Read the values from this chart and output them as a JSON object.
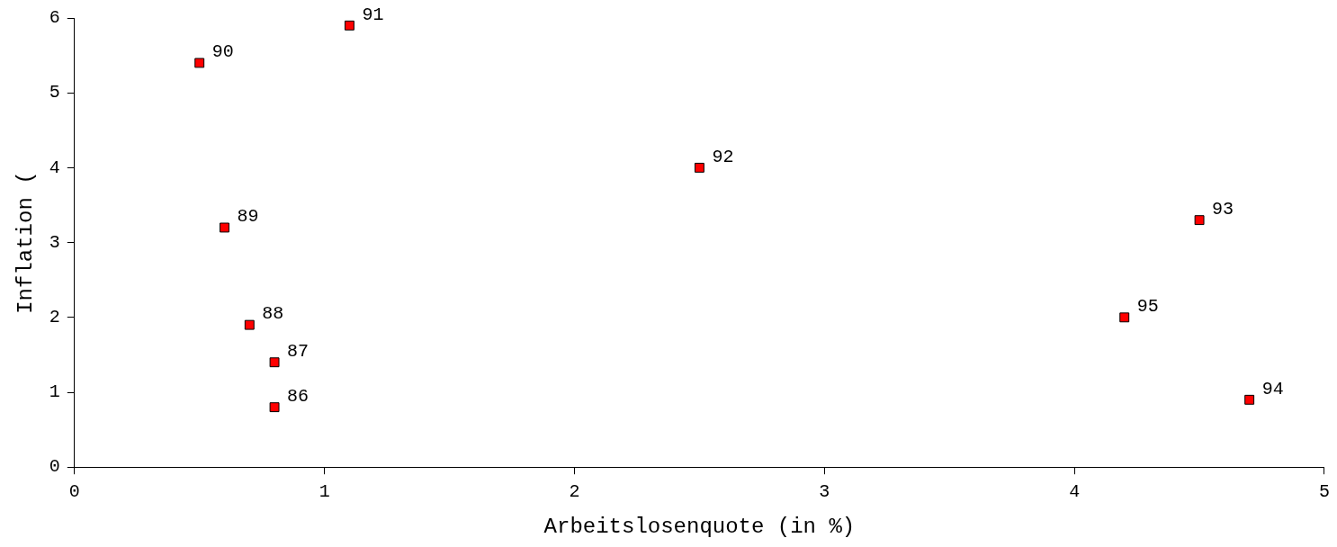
{
  "chart_data": {
    "type": "scatter",
    "xlabel": "Arbeitslosenquote (in %)",
    "ylabel": "Inflation (",
    "x": [
      0.8,
      0.8,
      0.7,
      0.6,
      0.5,
      1.1,
      2.5,
      4.5,
      4.7,
      4.2
    ],
    "values": [
      0.8,
      1.4,
      1.9,
      3.2,
      5.4,
      5.9,
      4.0,
      3.3,
      0.9,
      2.0
    ],
    "annotations": [
      {
        "text": "86",
        "x": 0.8,
        "y": 0.8
      },
      {
        "text": "87",
        "x": 0.8,
        "y": 1.4
      },
      {
        "text": "88",
        "x": 0.7,
        "y": 1.9
      },
      {
        "text": "89",
        "x": 0.6,
        "y": 3.2
      },
      {
        "text": "90",
        "x": 0.5,
        "y": 5.4
      },
      {
        "text": "91",
        "x": 1.1,
        "y": 5.9
      },
      {
        "text": "92",
        "x": 2.5,
        "y": 4.0
      },
      {
        "text": "93",
        "x": 4.5,
        "y": 3.3
      },
      {
        "text": "94",
        "x": 4.7,
        "y": 0.9
      },
      {
        "text": "95",
        "x": 4.2,
        "y": 2.0
      }
    ],
    "color": "#ff0000",
    "marker": "square",
    "xlim": [
      0,
      5
    ],
    "xticks": [
      0,
      1,
      2,
      3,
      4,
      5
    ],
    "ylim": [
      0,
      6
    ],
    "yticks": [
      0,
      1,
      2,
      3,
      4,
      5,
      6
    ],
    "grid": false,
    "legend": false
  }
}
